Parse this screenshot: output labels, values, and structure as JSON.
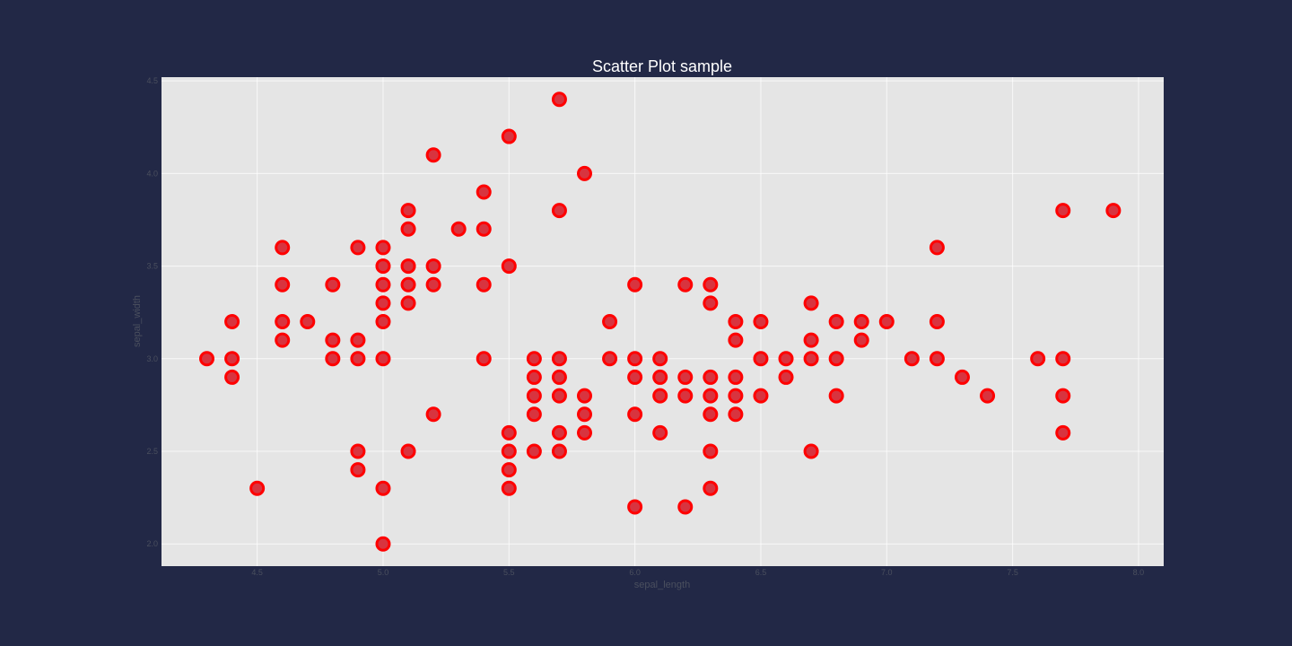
{
  "page": {
    "background": "#222846"
  },
  "chart_data": {
    "type": "scatter",
    "title": "Scatter Plot sample",
    "xlabel": "sepal_length",
    "ylabel": "sepal_width",
    "xlim": [
      4.12,
      8.1
    ],
    "ylim": [
      1.88,
      4.52
    ],
    "x_ticks": [
      "4.5",
      "5.0",
      "5.5",
      "6.0",
      "6.5",
      "7.0",
      "7.5",
      "8.0"
    ],
    "y_ticks": [
      "2.0",
      "2.5",
      "3.0",
      "3.5",
      "4.0",
      "4.5"
    ],
    "grid": true,
    "plot_background": "#e5e5e5",
    "marker_fill": "#d8343f",
    "marker_edge": "#ff0000",
    "points": [
      [
        4.3,
        3.0
      ],
      [
        4.4,
        3.2
      ],
      [
        4.4,
        3.0
      ],
      [
        4.4,
        2.9
      ],
      [
        4.5,
        2.3
      ],
      [
        4.6,
        3.6
      ],
      [
        4.6,
        3.4
      ],
      [
        4.6,
        3.2
      ],
      [
        4.6,
        3.1
      ],
      [
        4.7,
        3.2
      ],
      [
        4.8,
        3.4
      ],
      [
        4.8,
        3.1
      ],
      [
        4.8,
        3.0
      ],
      [
        4.9,
        3.6
      ],
      [
        4.9,
        3.1
      ],
      [
        4.9,
        3.0
      ],
      [
        4.9,
        2.5
      ],
      [
        4.9,
        2.4
      ],
      [
        5.0,
        3.6
      ],
      [
        5.0,
        3.5
      ],
      [
        5.0,
        3.4
      ],
      [
        5.0,
        3.3
      ],
      [
        5.0,
        3.2
      ],
      [
        5.0,
        3.0
      ],
      [
        5.0,
        2.3
      ],
      [
        5.0,
        2.0
      ],
      [
        5.1,
        3.8
      ],
      [
        5.1,
        3.7
      ],
      [
        5.1,
        3.5
      ],
      [
        5.1,
        3.4
      ],
      [
        5.1,
        3.3
      ],
      [
        5.1,
        2.5
      ],
      [
        5.2,
        4.1
      ],
      [
        5.2,
        3.5
      ],
      [
        5.2,
        3.4
      ],
      [
        5.2,
        2.7
      ],
      [
        5.3,
        3.7
      ],
      [
        5.4,
        3.9
      ],
      [
        5.4,
        3.7
      ],
      [
        5.4,
        3.4
      ],
      [
        5.4,
        3.0
      ],
      [
        5.5,
        4.2
      ],
      [
        5.5,
        3.5
      ],
      [
        5.5,
        2.6
      ],
      [
        5.5,
        2.5
      ],
      [
        5.5,
        2.4
      ],
      [
        5.5,
        2.3
      ],
      [
        5.6,
        3.0
      ],
      [
        5.6,
        2.9
      ],
      [
        5.6,
        2.8
      ],
      [
        5.6,
        2.7
      ],
      [
        5.6,
        2.5
      ],
      [
        5.7,
        4.4
      ],
      [
        5.7,
        3.8
      ],
      [
        5.7,
        3.0
      ],
      [
        5.7,
        2.9
      ],
      [
        5.7,
        2.8
      ],
      [
        5.7,
        2.6
      ],
      [
        5.7,
        2.5
      ],
      [
        5.8,
        4.0
      ],
      [
        5.8,
        2.8
      ],
      [
        5.8,
        2.7
      ],
      [
        5.8,
        2.6
      ],
      [
        5.9,
        3.2
      ],
      [
        5.9,
        3.0
      ],
      [
        6.0,
        3.4
      ],
      [
        6.0,
        3.0
      ],
      [
        6.0,
        2.9
      ],
      [
        6.0,
        2.7
      ],
      [
        6.0,
        2.2
      ],
      [
        6.1,
        3.0
      ],
      [
        6.1,
        2.9
      ],
      [
        6.1,
        2.8
      ],
      [
        6.1,
        2.6
      ],
      [
        6.2,
        3.4
      ],
      [
        6.2,
        2.9
      ],
      [
        6.2,
        2.8
      ],
      [
        6.2,
        2.2
      ],
      [
        6.3,
        3.4
      ],
      [
        6.3,
        3.3
      ],
      [
        6.3,
        2.9
      ],
      [
        6.3,
        2.8
      ],
      [
        6.3,
        2.7
      ],
      [
        6.3,
        2.5
      ],
      [
        6.3,
        2.3
      ],
      [
        6.4,
        3.2
      ],
      [
        6.4,
        3.1
      ],
      [
        6.4,
        2.9
      ],
      [
        6.4,
        2.8
      ],
      [
        6.4,
        2.7
      ],
      [
        6.5,
        3.2
      ],
      [
        6.5,
        3.0
      ],
      [
        6.5,
        2.8
      ],
      [
        6.6,
        3.0
      ],
      [
        6.6,
        2.9
      ],
      [
        6.7,
        3.3
      ],
      [
        6.7,
        3.1
      ],
      [
        6.7,
        3.0
      ],
      [
        6.7,
        2.5
      ],
      [
        6.8,
        3.2
      ],
      [
        6.8,
        3.0
      ],
      [
        6.8,
        2.8
      ],
      [
        6.9,
        3.2
      ],
      [
        6.9,
        3.1
      ],
      [
        7.0,
        3.2
      ],
      [
        7.1,
        3.0
      ],
      [
        7.2,
        3.6
      ],
      [
        7.2,
        3.2
      ],
      [
        7.2,
        3.0
      ],
      [
        7.3,
        2.9
      ],
      [
        7.4,
        2.8
      ],
      [
        7.6,
        3.0
      ],
      [
        7.7,
        3.8
      ],
      [
        7.7,
        3.0
      ],
      [
        7.7,
        2.8
      ],
      [
        7.7,
        2.6
      ],
      [
        7.9,
        3.8
      ]
    ]
  }
}
